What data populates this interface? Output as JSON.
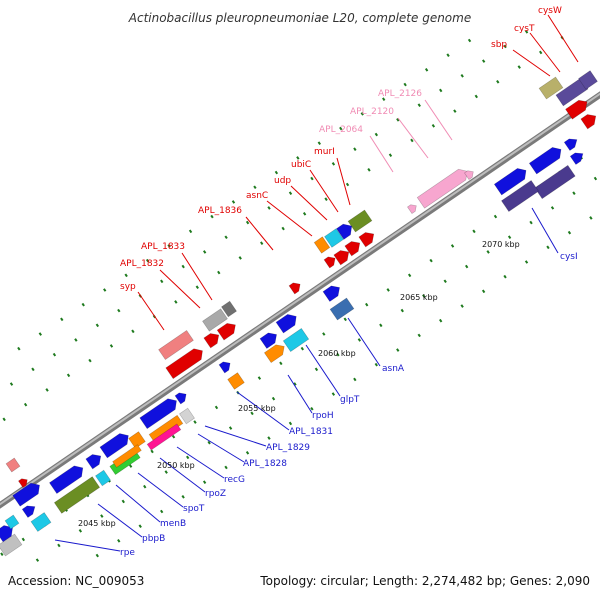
{
  "title": "Actinobacillus pleuropneumoniae L20, complete genome",
  "footer": {
    "accession": "Accession: NC_009053",
    "summary": "Topology: circular; Length: 2,274,482 bp; Genes: 2,090"
  },
  "ticks": [
    "2045 kbp",
    "2050 kbp",
    "2055 kbp",
    "2060 kbp",
    "2065 kbp",
    "2070 kbp"
  ],
  "colors": {
    "backbone": "#8c8c8c",
    "label_above": "#e00000",
    "label_above_pink": "#f08cb4",
    "label_below": "#1a1acc",
    "ticks": "#1e7a1e"
  },
  "labels_above": [
    "cysW",
    "cysT",
    "sbp",
    "APL_2126",
    "APL_2120",
    "APL_2064",
    "murI",
    "ubiC",
    "udp",
    "asnC",
    "APL_1836",
    "APL_1833",
    "APL_1832",
    "syp"
  ],
  "labels_below": [
    "cysI",
    "asnA",
    "glpT",
    "rpoH",
    "APL_1831",
    "APL_1829",
    "APL_1828",
    "recG",
    "rpoZ",
    "spoT",
    "menB",
    "pbpB",
    "rpe"
  ]
}
